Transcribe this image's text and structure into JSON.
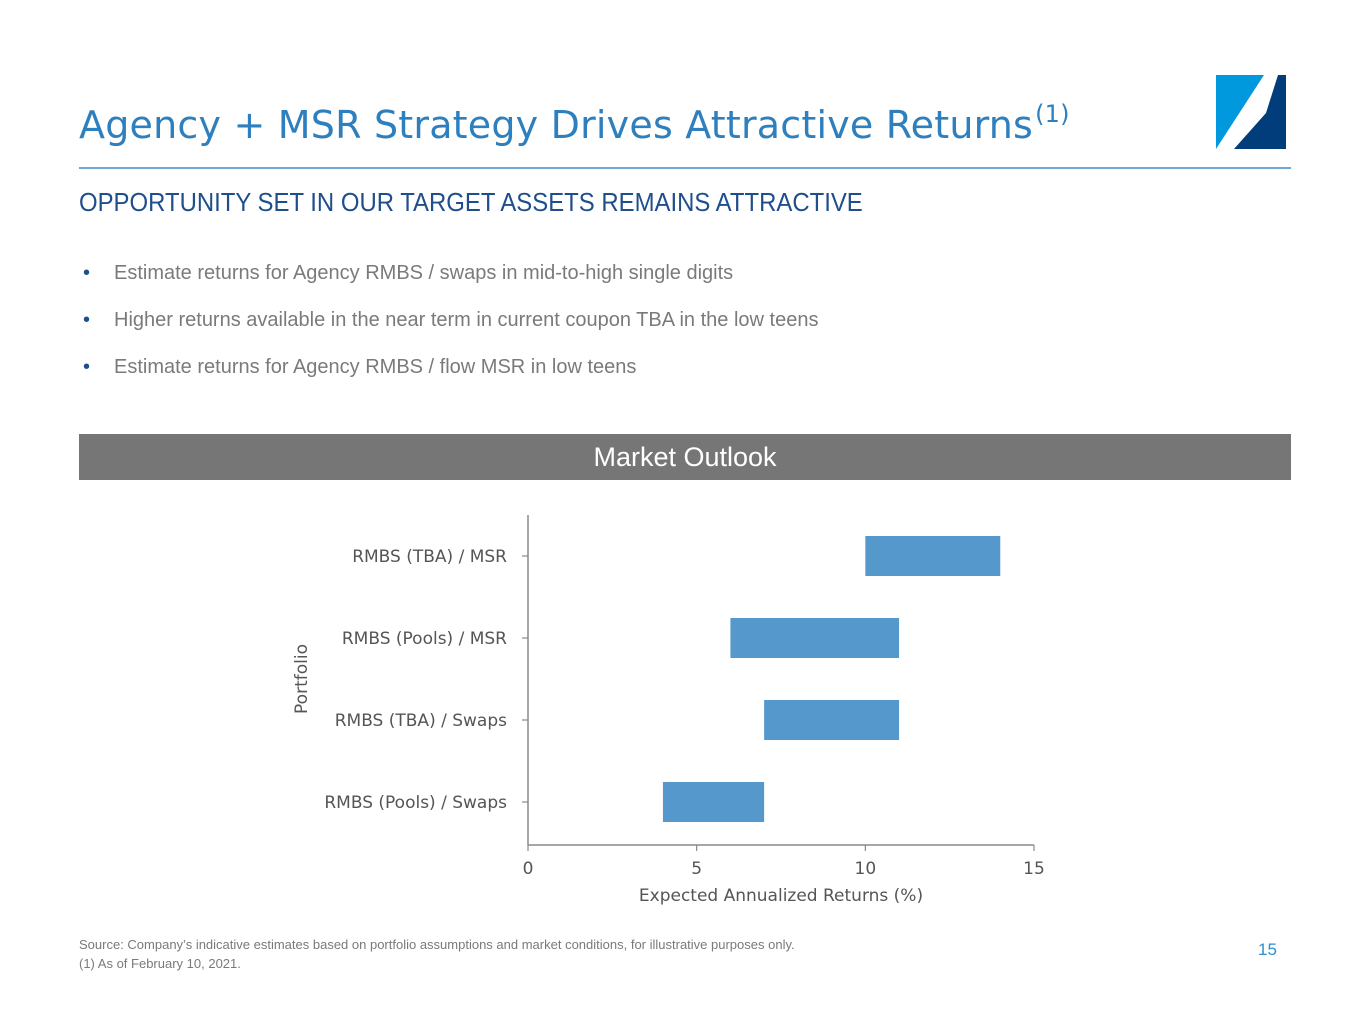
{
  "header": {
    "title": "Agency + MSR Strategy Drives Attractive Returns",
    "title_superscript": "(1)",
    "subtitle": "OPPORTUNITY SET IN OUR TARGET ASSETS REMAINS ATTRACTIVE"
  },
  "bullets": [
    "Estimate returns for Agency RMBS / swaps in mid-to-high single digits",
    "Higher returns available in the near term in current coupon TBA in the low teens",
    "Estimate returns for Agency RMBS / flow MSR in low teens"
  ],
  "banner": {
    "label": "Market Outlook"
  },
  "chart_data": {
    "type": "bar",
    "orientation": "horizontal",
    "ylabel": "Portfolio",
    "xlabel": "Expected Annualized Returns (%)",
    "xlim": [
      0,
      15
    ],
    "xticks": [
      "0",
      "5",
      "10",
      "15"
    ],
    "categories": [
      "RMBS (TBA) / MSR",
      "RMBS (Pools) / MSR",
      "RMBS (TBA) / Swaps",
      "RMBS (Pools) / Swaps"
    ],
    "ranges": [
      [
        10,
        14
      ],
      [
        6,
        11
      ],
      [
        7,
        11
      ],
      [
        4,
        7
      ]
    ],
    "bar_color": "#5599cc",
    "grid": false,
    "legend": "none"
  },
  "footer": {
    "source": "Source: Company’s indicative estimates based on portfolio assumptions and market conditions, for illustrative purposes only.",
    "footnote": "(1)  As of February 10, 2021.",
    "page_number": "15"
  },
  "colors": {
    "title": "#2e7fbd",
    "subtitle": "#1f4e8c",
    "banner": "#767676",
    "logo_light": "#0099dd",
    "logo_dark": "#003d7a"
  },
  "icons": {
    "logo": "company-logo"
  }
}
